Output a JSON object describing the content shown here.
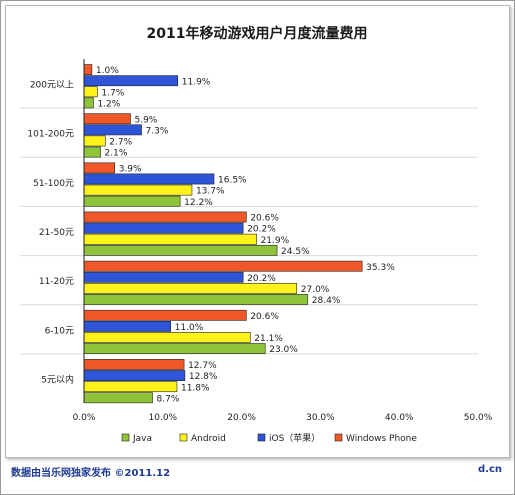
{
  "chart_data": {
    "type": "bar",
    "orientation": "horizontal",
    "title": "2011年移动游戏用户月度流量费用",
    "categories": [
      "200元以上",
      "101-200元",
      "51-100元",
      "21-50元",
      "11-20元",
      "6-10元",
      "5元以内"
    ],
    "series": [
      {
        "name": "Windows Phone",
        "color": "#f0582a",
        "labels": [
          "1.0%",
          "5.9%",
          "3.9%",
          "20.6%",
          "35.3%",
          "20.6%",
          "12.7%"
        ],
        "values": [
          1.0,
          5.9,
          3.9,
          20.6,
          35.3,
          20.6,
          12.7
        ]
      },
      {
        "name": "iOS（苹果）",
        "color": "#2e55d8",
        "labels": [
          "11.9%",
          "7.3%",
          "16.5%",
          "20.2%",
          "20.2%",
          "11.0%",
          "12.8%"
        ],
        "values": [
          11.9,
          7.3,
          16.5,
          20.2,
          20.2,
          11.0,
          12.8
        ]
      },
      {
        "name": "Android",
        "color": "#fff21a",
        "labels": [
          "1.7%",
          "2.7%",
          "13.7%",
          "21.9%",
          "27.0%",
          "21.1%",
          "11.8%"
        ],
        "values": [
          1.7,
          2.7,
          13.7,
          21.9,
          27.0,
          21.1,
          11.8
        ]
      },
      {
        "name": "Java",
        "color": "#8fc43a",
        "labels": [
          "1.2%",
          "2.1%",
          "12.2%",
          "24.5%",
          "28.4%",
          "23.0%",
          "8.7%"
        ],
        "values": [
          1.2,
          2.1,
          12.2,
          24.5,
          28.4,
          23.0,
          8.7
        ]
      }
    ],
    "xlim": [
      0,
      50
    ],
    "x_ticks": [
      "0.0%",
      "10.0%",
      "20.0%",
      "30.0%",
      "40.0%",
      "50.0%"
    ],
    "legend_order": [
      "Java",
      "Android",
      "iOS（苹果）",
      "Windows Phone"
    ],
    "legend_position": "bottom",
    "grid": false
  },
  "footer": {
    "source": "数据由当乐网独家发布  ©2011.12",
    "brand": "d.cn"
  }
}
